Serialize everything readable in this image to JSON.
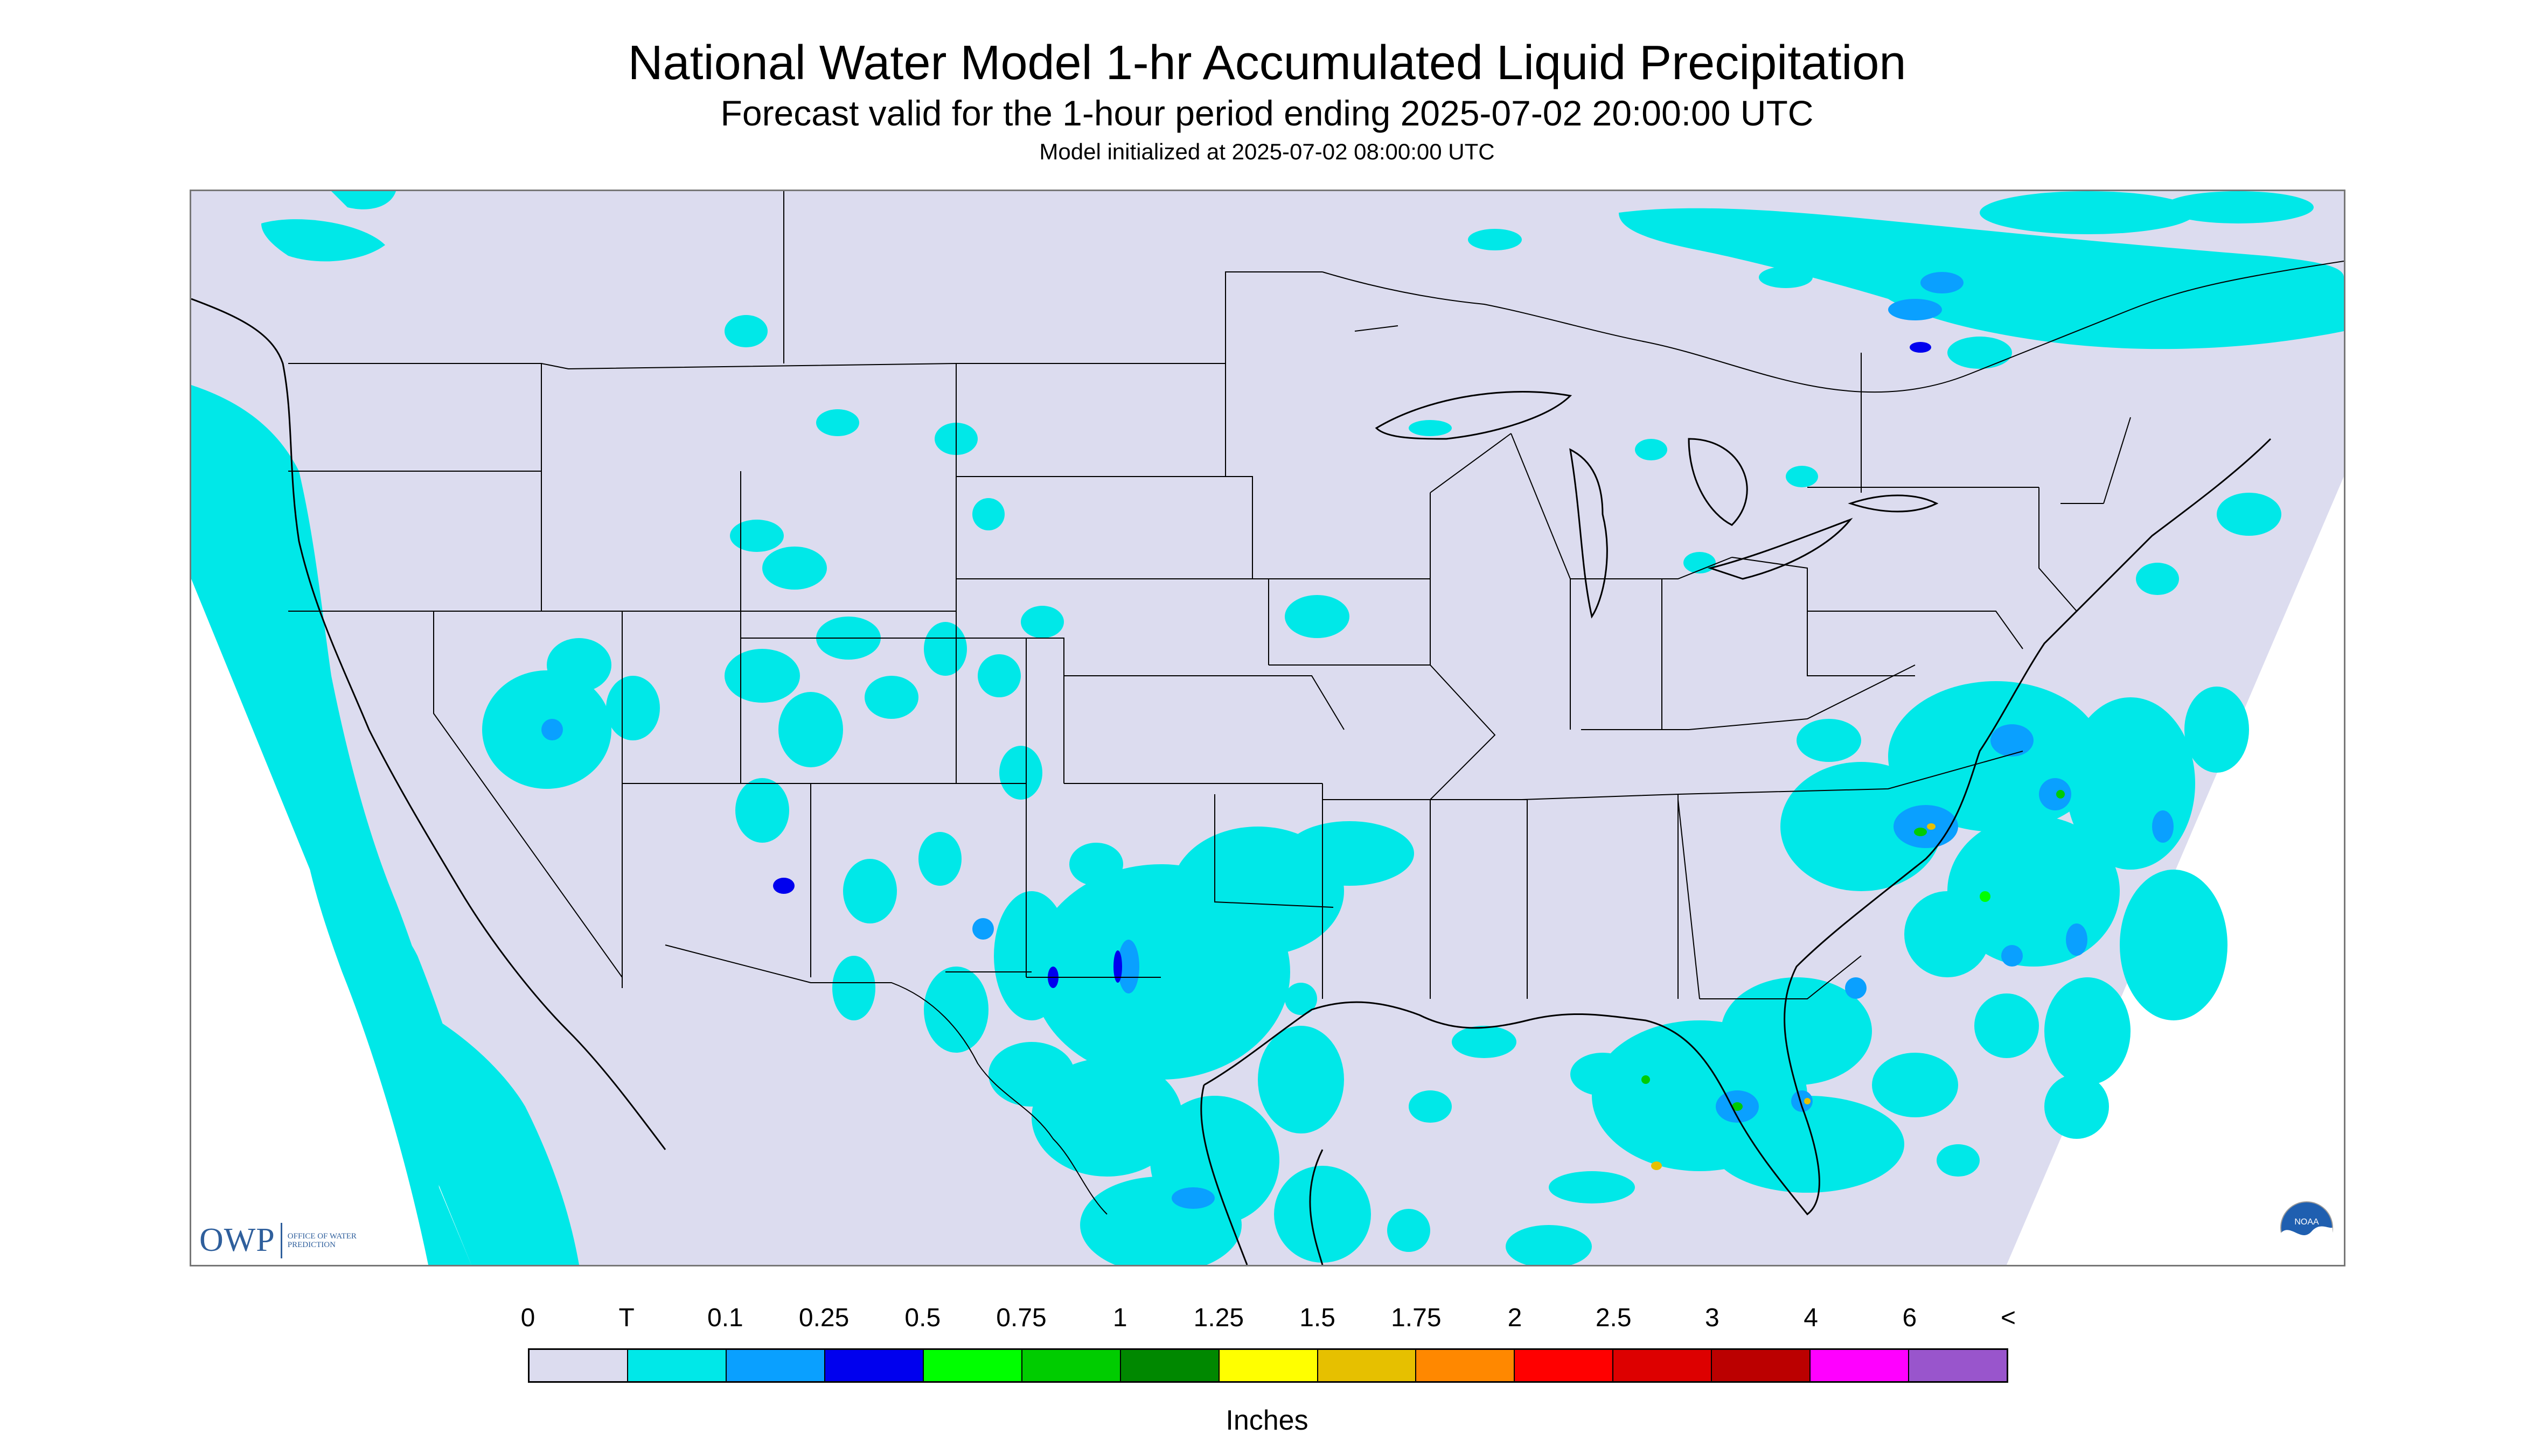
{
  "header": {
    "title": "National Water Model 1-hr Accumulated Liquid Precipitation",
    "subtitle": "Forecast valid for the 1-hour period ending 2025-07-02 20:00:00 UTC",
    "init": "Model initialized at 2025-07-02 08:00:00 UTC"
  },
  "logos": {
    "owp_mark": "OWP",
    "owp_text": "OFFICE OF WATER PREDICTION",
    "noaa_text": "NOAA"
  },
  "legend": {
    "units": "Inches",
    "labels": [
      "0",
      "T",
      "0.1",
      "0.25",
      "0.5",
      "0.75",
      "1",
      "1.25",
      "1.5",
      "1.75",
      "2",
      "2.5",
      "3",
      "4",
      "6",
      "<"
    ],
    "colors": [
      "#dcdcef",
      "#00e8e8",
      "#0aa0ff",
      "#0000ee",
      "#00ff00",
      "#00cc00",
      "#008800",
      "#ffff00",
      "#e6c000",
      "#ff8800",
      "#ff0000",
      "#dd0000",
      "#bb0000",
      "#ff00ff",
      "#9955cc"
    ]
  },
  "colors": {
    "no_precip": "#dcdcef",
    "trace": "#00e8e8",
    "boundaries": "#000000"
  }
}
